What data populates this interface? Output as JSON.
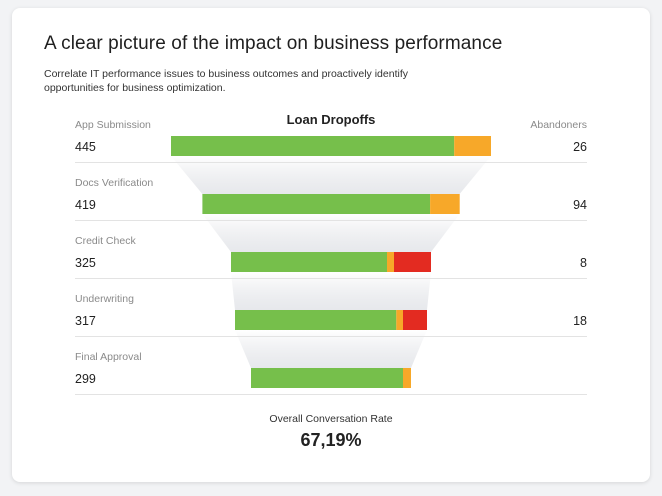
{
  "header": {
    "title": "A clear picture of the impact on business performance",
    "subtitle": "Correlate IT performance issues to business outcomes and proactively identify opportunities for business optimization."
  },
  "chart_data": {
    "type": "bar",
    "title": "Loan Dropoffs",
    "abandoners_header": "Abandoners",
    "series_colors": {
      "success": "#76bf4b",
      "warning": "#f7a829",
      "error": "#e32b21"
    },
    "stages": [
      {
        "label": "App Submission",
        "value": "445",
        "abandoners": "26",
        "segments": {
          "success": 0.885,
          "warning": 0.115,
          "error": 0
        }
      },
      {
        "label": "Docs Verification",
        "value": "419",
        "abandoners": "94",
        "segments": {
          "success": 0.885,
          "warning": 0.115,
          "error": 0
        }
      },
      {
        "label": "Credit Check",
        "value": "325",
        "abandoners": "8",
        "segments": {
          "success": 0.78,
          "warning": 0.035,
          "error": 0.185
        }
      },
      {
        "label": "Underwriting",
        "value": "317",
        "abandoners": "18",
        "segments": {
          "success": 0.84,
          "warning": 0.035,
          "error": 0.125
        }
      },
      {
        "label": "Final Approval",
        "value": "299",
        "abandoners": "",
        "segments": {
          "success": 0.95,
          "warning": 0.05,
          "error": 0
        }
      }
    ]
  },
  "summary": {
    "label": "Overall Conversation Rate",
    "value": "67,19%"
  }
}
